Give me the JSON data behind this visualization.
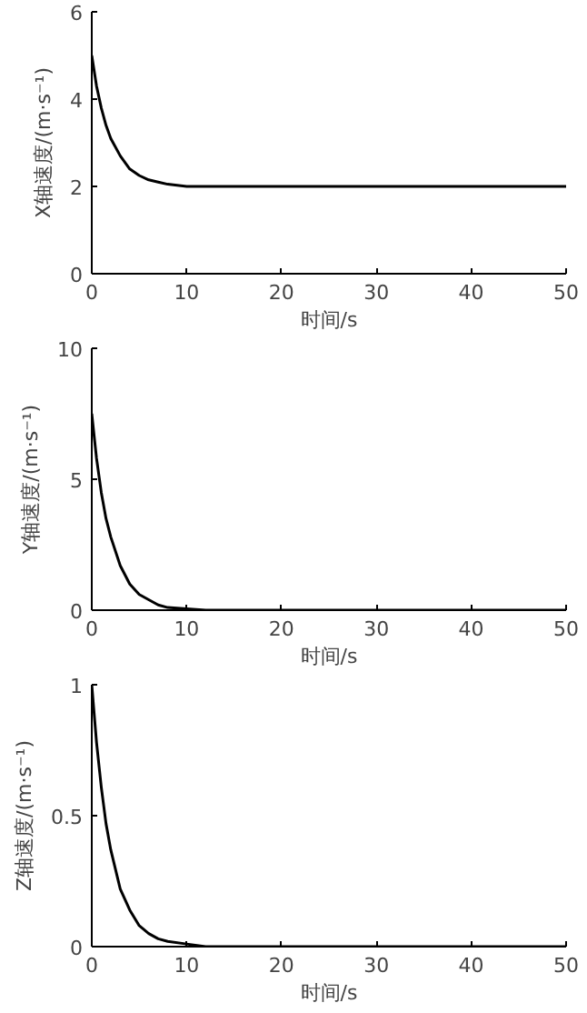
{
  "chart_data": [
    {
      "type": "line",
      "xlabel": "时间/s",
      "ylabel": "X轴速度/(m·s⁻¹)",
      "x": [
        0,
        0.5,
        1,
        1.5,
        2,
        3,
        4,
        5,
        6,
        7,
        8,
        10,
        12,
        15,
        20,
        30,
        40,
        50
      ],
      "series": [
        {
          "color": "#000000",
          "values": [
            5,
            4.3,
            3.8,
            3.4,
            3.1,
            2.7,
            2.4,
            2.25,
            2.15,
            2.1,
            2.05,
            2,
            2,
            2,
            2,
            2,
            2,
            2
          ]
        }
      ],
      "xlim": [
        0,
        50
      ],
      "xticks": [
        0,
        10,
        20,
        30,
        40,
        50
      ],
      "ylim": [
        0,
        6
      ],
      "yticks": [
        0,
        2,
        4,
        6
      ],
      "grid": false
    },
    {
      "type": "line",
      "xlabel": "时间/s",
      "ylabel": "Y轴速度/(m·s⁻¹)",
      "x": [
        0,
        0.5,
        1,
        1.5,
        2,
        3,
        4,
        5,
        6,
        7,
        8,
        10,
        12,
        15,
        20,
        30,
        40,
        50
      ],
      "series": [
        {
          "color": "#000000",
          "values": [
            7.5,
            5.8,
            4.5,
            3.5,
            2.8,
            1.7,
            1,
            0.6,
            0.4,
            0.2,
            0.1,
            0.05,
            0,
            0,
            0,
            0,
            0,
            0
          ]
        }
      ],
      "xlim": [
        0,
        50
      ],
      "xticks": [
        0,
        10,
        20,
        30,
        40,
        50
      ],
      "ylim": [
        0,
        10
      ],
      "yticks": [
        0,
        5,
        10
      ],
      "grid": false
    },
    {
      "type": "line",
      "xlabel": "时间/s",
      "ylabel": "Z轴速度/(m·s⁻¹)",
      "x": [
        0,
        0.5,
        1,
        1.5,
        2,
        3,
        4,
        5,
        6,
        7,
        8,
        10,
        12,
        15,
        20,
        30,
        40,
        50
      ],
      "series": [
        {
          "color": "#000000",
          "values": [
            1,
            0.78,
            0.61,
            0.47,
            0.37,
            0.22,
            0.14,
            0.08,
            0.05,
            0.03,
            0.02,
            0.01,
            0,
            0,
            0,
            0,
            0,
            0
          ]
        }
      ],
      "xlim": [
        0,
        50
      ],
      "xticks": [
        0,
        10,
        20,
        30,
        40,
        50
      ],
      "ylim": [
        0,
        1
      ],
      "yticks": [
        0,
        {
          "value": 0.5,
          "label": "0.5"
        },
        1
      ],
      "grid": false
    }
  ]
}
